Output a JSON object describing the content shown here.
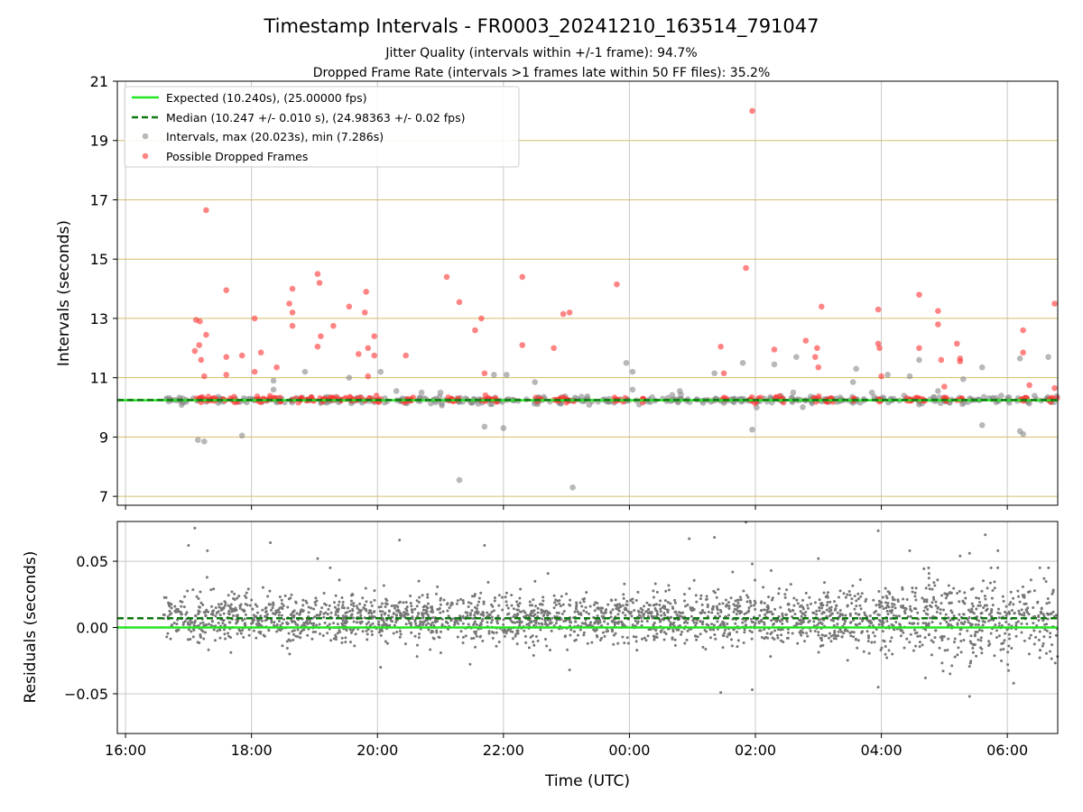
{
  "title": "Timestamp Intervals - FR0003_20241210_163514_791047",
  "subtitle_1": "Jitter Quality (intervals within +/-1 frame): 94.7%",
  "subtitle_2": "Dropped Frame Rate (intervals >1 frames late within 50 FF files): 35.2%",
  "colors": {
    "expected": "#22e622",
    "median": "#117711",
    "intervals": "#888888",
    "dropped": "#ff3333",
    "hgrid_top": "#d4bd6a",
    "grid": "#c8c8c8",
    "residuals": "#777777"
  },
  "chart_data": [
    {
      "type": "scatter",
      "ylabel": "Intervals (seconds)",
      "xlim": [
        15.87,
        30.8
      ],
      "ylim": [
        6.7,
        21
      ],
      "xticks_hours": [
        16,
        18,
        20,
        22,
        24,
        26,
        28,
        30
      ],
      "yticks": [
        7,
        9,
        11,
        13,
        15,
        17,
        19,
        21
      ],
      "ytick_labels": [
        "7",
        "9",
        "11",
        "13",
        "15",
        "17",
        "19",
        "21"
      ],
      "grid": true,
      "legend_position": "top-left",
      "legend": [
        "Expected (10.240s), (25.00000 fps)",
        "Median (10.247 +/- 0.010 s), (24.98363 +/- 0.02 fps)",
        "Intervals, max (20.023s), min (7.286s)",
        "Possible Dropped Frames"
      ],
      "expected_value": 10.24,
      "median_value": 10.247,
      "baseline_cluster": {
        "x_range": [
          16.6,
          30.8
        ],
        "y": 10.25,
        "spread": 0.06
      },
      "intervals_outliers": [
        [
          17.15,
          8.9
        ],
        [
          17.25,
          8.85
        ],
        [
          17.85,
          9.05
        ],
        [
          18.35,
          10.9
        ],
        [
          18.35,
          10.6
        ],
        [
          18.85,
          11.2
        ],
        [
          19.55,
          11.0
        ],
        [
          20.05,
          11.2
        ],
        [
          20.3,
          10.55
        ],
        [
          20.7,
          10.5
        ],
        [
          21.0,
          10.5
        ],
        [
          21.3,
          7.55
        ],
        [
          21.7,
          9.35
        ],
        [
          21.85,
          11.1
        ],
        [
          22.0,
          9.3
        ],
        [
          22.05,
          11.1
        ],
        [
          22.5,
          10.85
        ],
        [
          23.1,
          7.3
        ],
        [
          23.95,
          11.5
        ],
        [
          24.05,
          11.2
        ],
        [
          24.05,
          10.6
        ],
        [
          24.8,
          10.55
        ],
        [
          25.35,
          11.15
        ],
        [
          25.5,
          10.15
        ],
        [
          25.8,
          11.5
        ],
        [
          25.95,
          9.25
        ],
        [
          26.3,
          11.45
        ],
        [
          26.6,
          10.5
        ],
        [
          26.65,
          11.7
        ],
        [
          27.55,
          10.85
        ],
        [
          27.6,
          11.3
        ],
        [
          27.85,
          10.5
        ],
        [
          28.1,
          11.1
        ],
        [
          28.45,
          11.05
        ],
        [
          28.6,
          10.1
        ],
        [
          28.6,
          11.6
        ],
        [
          28.9,
          10.55
        ],
        [
          29.3,
          10.95
        ],
        [
          29.6,
          9.4
        ],
        [
          29.6,
          11.35
        ],
        [
          30.2,
          11.65
        ],
        [
          30.2,
          9.2
        ],
        [
          30.25,
          9.1
        ],
        [
          30.65,
          11.7
        ]
      ],
      "dropped_frames": [
        [
          17.1,
          11.9
        ],
        [
          17.12,
          12.95
        ],
        [
          17.17,
          12.1
        ],
        [
          17.18,
          12.9
        ],
        [
          17.2,
          11.6
        ],
        [
          17.25,
          11.05
        ],
        [
          17.28,
          12.45
        ],
        [
          17.28,
          16.65
        ],
        [
          17.6,
          11.1
        ],
        [
          17.6,
          13.95
        ],
        [
          17.6,
          11.7
        ],
        [
          17.85,
          11.75
        ],
        [
          18.05,
          13.0
        ],
        [
          18.05,
          11.2
        ],
        [
          18.15,
          11.85
        ],
        [
          18.4,
          11.35
        ],
        [
          18.6,
          13.5
        ],
        [
          18.65,
          14.0
        ],
        [
          18.65,
          13.2
        ],
        [
          18.65,
          12.75
        ],
        [
          19.05,
          14.5
        ],
        [
          19.08,
          14.2
        ],
        [
          19.05,
          12.05
        ],
        [
          19.1,
          12.4
        ],
        [
          19.3,
          12.75
        ],
        [
          19.55,
          13.4
        ],
        [
          19.7,
          11.8
        ],
        [
          19.8,
          13.2
        ],
        [
          19.82,
          13.9
        ],
        [
          19.85,
          12.0
        ],
        [
          19.85,
          11.05
        ],
        [
          19.95,
          11.75
        ],
        [
          19.95,
          12.4
        ],
        [
          20.45,
          11.75
        ],
        [
          21.1,
          14.4
        ],
        [
          21.3,
          13.55
        ],
        [
          21.55,
          12.6
        ],
        [
          21.65,
          13.0
        ],
        [
          21.7,
          11.15
        ],
        [
          22.3,
          14.4
        ],
        [
          22.3,
          12.1
        ],
        [
          22.8,
          12.0
        ],
        [
          22.95,
          13.15
        ],
        [
          23.05,
          13.2
        ],
        [
          23.8,
          14.15
        ],
        [
          25.45,
          12.05
        ],
        [
          25.5,
          11.15
        ],
        [
          25.85,
          14.7
        ],
        [
          25.95,
          20.0
        ],
        [
          26.3,
          11.95
        ],
        [
          26.8,
          12.25
        ],
        [
          26.95,
          11.7
        ],
        [
          26.98,
          12.0
        ],
        [
          27.0,
          11.35
        ],
        [
          27.05,
          13.4
        ],
        [
          27.95,
          13.3
        ],
        [
          27.95,
          12.15
        ],
        [
          27.97,
          12.0
        ],
        [
          28.0,
          11.05
        ],
        [
          28.6,
          13.8
        ],
        [
          28.6,
          12.0
        ],
        [
          28.9,
          13.25
        ],
        [
          28.9,
          12.8
        ],
        [
          28.95,
          11.6
        ],
        [
          29.0,
          10.7
        ],
        [
          29.2,
          12.15
        ],
        [
          29.25,
          11.65
        ],
        [
          29.25,
          11.55
        ],
        [
          30.25,
          12.6
        ],
        [
          30.25,
          11.85
        ],
        [
          30.35,
          10.75
        ],
        [
          30.75,
          13.5
        ],
        [
          30.75,
          10.65
        ]
      ],
      "dropped_cluster_segments": [
        [
          17.05,
          17.6
        ],
        [
          17.65,
          17.8
        ],
        [
          18.05,
          18.5
        ],
        [
          18.6,
          19.0
        ],
        [
          19.05,
          19.5
        ],
        [
          19.55,
          19.75
        ],
        [
          19.8,
          20.05
        ],
        [
          20.4,
          20.6
        ],
        [
          21.1,
          21.3
        ],
        [
          21.6,
          21.9
        ],
        [
          22.5,
          22.6
        ],
        [
          22.8,
          23.15
        ],
        [
          23.75,
          23.95
        ],
        [
          24.2,
          24.3
        ],
        [
          25.45,
          25.55
        ],
        [
          25.9,
          26.1
        ],
        [
          26.3,
          26.45
        ],
        [
          26.9,
          27.25
        ],
        [
          27.55,
          27.6
        ],
        [
          27.95,
          28.05
        ],
        [
          28.35,
          28.7
        ],
        [
          28.9,
          29.05
        ],
        [
          29.2,
          29.3
        ],
        [
          30.2,
          30.35
        ],
        [
          30.65,
          30.8
        ]
      ]
    },
    {
      "type": "scatter",
      "xlabel": "Time (UTC)",
      "ylabel": "Residuals (seconds)",
      "xlim": [
        15.87,
        30.8
      ],
      "ylim": [
        -0.08,
        0.08
      ],
      "xticks_hours": [
        16,
        18,
        20,
        22,
        24,
        26,
        28,
        30
      ],
      "xtick_labels": [
        "16:00",
        "18:00",
        "20:00",
        "22:00",
        "00:00",
        "02:00",
        "04:00",
        "06:00"
      ],
      "yticks": [
        -0.05,
        0.0,
        0.05
      ],
      "ytick_labels": [
        "−0.05",
        "0.00",
        "0.05"
      ],
      "grid": true,
      "expected_value": 0.0,
      "median_value": 0.007,
      "noise_model": {
        "x_range": [
          16.6,
          30.8
        ],
        "center": 0.007,
        "sd_start": 0.009,
        "sd_end": 0.016,
        "count": 2600
      },
      "outliers": [
        [
          17.0,
          0.062
        ],
        [
          17.1,
          0.075
        ],
        [
          17.3,
          0.058
        ],
        [
          18.3,
          0.064
        ],
        [
          19.05,
          0.052
        ],
        [
          19.25,
          0.045
        ],
        [
          20.35,
          0.066
        ],
        [
          21.7,
          0.062
        ],
        [
          24.95,
          0.067
        ],
        [
          25.35,
          0.068
        ],
        [
          25.85,
          0.08
        ],
        [
          25.95,
          0.048
        ],
        [
          26.25,
          0.043
        ],
        [
          27.0,
          0.052
        ],
        [
          27.95,
          0.073
        ],
        [
          28.45,
          0.058
        ],
        [
          28.75,
          0.045
        ],
        [
          29.25,
          0.054
        ],
        [
          29.4,
          0.056
        ],
        [
          29.65,
          0.07
        ],
        [
          29.85,
          0.058
        ],
        [
          25.45,
          -0.049
        ],
        [
          25.95,
          -0.047
        ],
        [
          27.95,
          -0.045
        ],
        [
          29.4,
          -0.052
        ],
        [
          30.1,
          -0.042
        ],
        [
          23.05,
          -0.032
        ],
        [
          20.05,
          -0.03
        ],
        [
          28.7,
          -0.038
        ]
      ]
    }
  ]
}
